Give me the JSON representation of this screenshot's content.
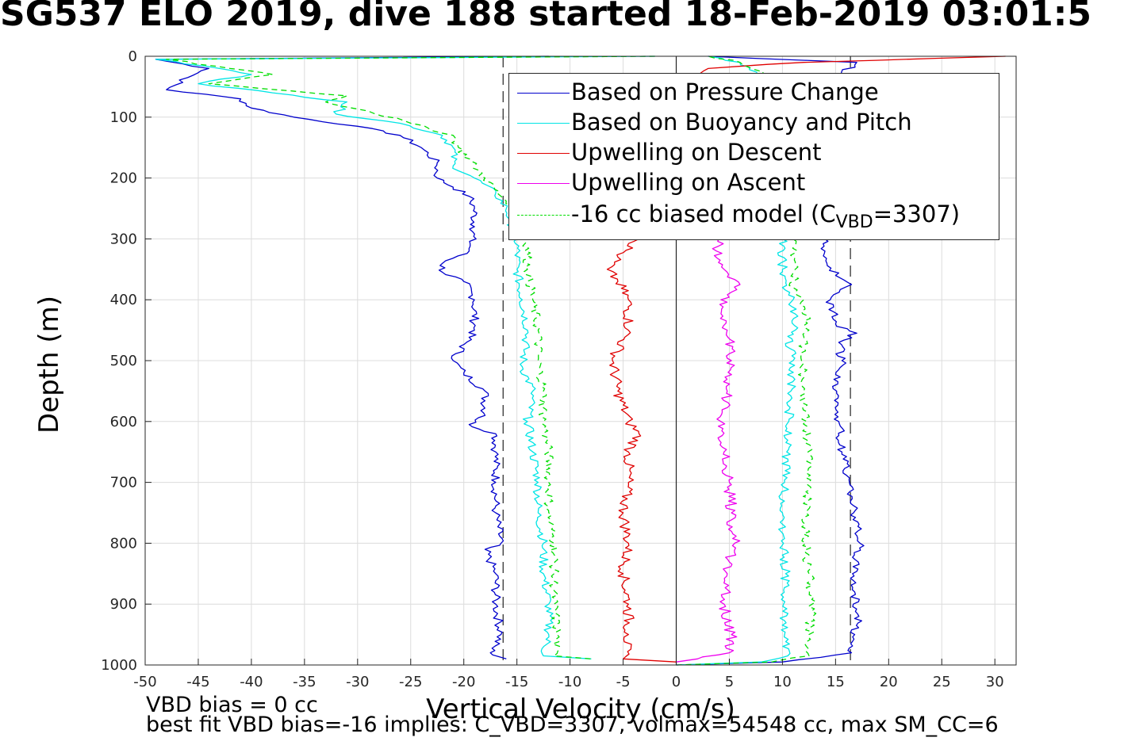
{
  "title": "SG537 ELO 2019, dive 188 started 18-Feb-2019 03:01:5",
  "ylabel": "Depth (m)",
  "xlabel": "Vertical Velocity (cm/s)",
  "footnotes": [
    "VBD bias = 0 cc",
    "best fit VBD bias=-16 implies: C_VBD=3307, volmax=54548 cc, max SM_CC=6"
  ],
  "legend": [
    {
      "label": "Based on Pressure Change",
      "color": "#0000cc",
      "style": "solid"
    },
    {
      "label": "Based on Buoyancy and Pitch",
      "color": "#00e5e5",
      "style": "solid"
    },
    {
      "label": "Upwelling on Descent",
      "color": "#e00000",
      "style": "solid"
    },
    {
      "label": "Upwelling on Ascent",
      "color": "#ee00ee",
      "style": "solid"
    },
    {
      "label_prefix": "-16 cc biased model (C",
      "label_sub": "VBD",
      "label_suffix": "=3307)",
      "color": "#00dd00",
      "style": "dashed"
    }
  ],
  "chart_data": {
    "type": "line",
    "xlim": [
      -50,
      32
    ],
    "ylim": [
      1000,
      0
    ],
    "x_ticks": [
      -50,
      -45,
      -40,
      -35,
      -30,
      -25,
      -20,
      -15,
      -10,
      -5,
      0,
      5,
      10,
      15,
      20,
      25,
      30
    ],
    "y_ticks": [
      0,
      100,
      200,
      300,
      400,
      500,
      600,
      700,
      800,
      900,
      1000
    ],
    "grid": true,
    "legend_position": "top-right",
    "reference_lines": {
      "dashed_x": [
        -16.3,
        16.4
      ],
      "solid_x": [
        0
      ]
    },
    "series": [
      {
        "name": "Based on Pressure Change",
        "color": "#0000cc",
        "descent": {
          "depth": [
            0,
            5,
            20,
            35,
            55,
            70,
            85,
            100,
            115,
            130,
            150,
            175,
            200,
            215,
            230,
            250,
            280,
            320,
            340,
            355,
            370,
            400,
            450,
            500,
            520,
            550,
            590,
            605,
            620,
            650,
            700,
            750,
            800,
            810,
            850,
            900,
            950,
            980,
            990
          ],
          "velocity": [
            -12,
            -49,
            -44,
            -46,
            -48,
            -41,
            -40,
            -36,
            -30,
            -26,
            -24,
            -22.5,
            -22.5,
            -21,
            -19.5,
            -19,
            -19,
            -19.5,
            -22,
            -22,
            -20,
            -19,
            -19,
            -21,
            -20,
            -18,
            -18,
            -19.5,
            -17,
            -17,
            -17,
            -17,
            -16.5,
            -18,
            -17,
            -17,
            -16.5,
            -17.5,
            -16
          ]
        },
        "ascent": {
          "depth": [
            1000,
            995,
            980,
            950,
            920,
            880,
            850,
            800,
            780,
            750,
            700,
            650,
            600,
            550,
            500,
            470,
            455,
            440,
            400,
            375,
            360,
            320,
            300,
            250,
            200,
            150,
            100,
            50,
            10,
            0
          ],
          "velocity": [
            0,
            10,
            16.5,
            16.8,
            17.2,
            16.8,
            16.6,
            17.3,
            17.1,
            16.7,
            16.3,
            15.6,
            15.3,
            15.1,
            15.6,
            15.3,
            17,
            15,
            14.5,
            16.5,
            15,
            14,
            14,
            14,
            14,
            14,
            14,
            14,
            17,
            3
          ]
        }
      },
      {
        "name": "Based on Buoyancy and Pitch",
        "color": "#00e5e5",
        "descent": {
          "depth": [
            0,
            5,
            20,
            30,
            45,
            60,
            75,
            95,
            110,
            130,
            150,
            180,
            200,
            225,
            250,
            300,
            350,
            400,
            450,
            510,
            550,
            600,
            650,
            700,
            750,
            800,
            850,
            900,
            950,
            985,
            990
          ],
          "velocity": [
            -2,
            -49,
            -43,
            -40,
            -45,
            -38,
            -31,
            -32,
            -26,
            -22,
            -21,
            -21,
            -19,
            -17,
            -16,
            -15,
            -15,
            -14.5,
            -14,
            -14.5,
            -13.5,
            -14,
            -13.5,
            -13,
            -13,
            -12.5,
            -12.5,
            -12,
            -12,
            -12.5,
            -8
          ]
        },
        "ascent": {
          "depth": [
            1000,
            995,
            985,
            950,
            900,
            850,
            800,
            750,
            700,
            650,
            600,
            550,
            500,
            460,
            450,
            400,
            380,
            350,
            300,
            250,
            200,
            150,
            100,
            50,
            10,
            0
          ],
          "velocity": [
            0,
            8,
            10.5,
            10.2,
            10.1,
            10.3,
            10.1,
            10,
            10.2,
            10.4,
            10.6,
            10.8,
            11,
            10.5,
            11.2,
            11,
            10,
            10,
            10,
            10,
            10,
            10,
            10,
            10,
            6,
            3
          ]
        }
      },
      {
        "name": "Upwelling on Descent",
        "color": "#e00000",
        "depth": [
          0,
          10,
          20,
          300,
          330,
          350,
          370,
          400,
          450,
          500,
          550,
          600,
          620,
          650,
          700,
          750,
          800,
          850,
          900,
          950,
          990,
          995
        ],
        "velocity": [
          31,
          12,
          3,
          -3.5,
          -5.5,
          -6.5,
          -5.5,
          -4.5,
          -4.5,
          -6,
          -5.5,
          -4.5,
          -3.5,
          -4.5,
          -4.5,
          -5,
          -4.5,
          -5,
          -4.5,
          -4.5,
          -5,
          0
        ]
      },
      {
        "name": "Upwelling on Ascent",
        "color": "#ee00ee",
        "depth": [
          995,
          990,
          980,
          950,
          900,
          850,
          800,
          750,
          700,
          650,
          600,
          550,
          500,
          450,
          400,
          375,
          350,
          320,
          300
        ],
        "velocity": [
          0,
          2,
          5,
          5.2,
          4.5,
          4.8,
          5.5,
          5.2,
          5,
          4.5,
          4.2,
          4.8,
          5.2,
          4.8,
          4.2,
          6,
          4.5,
          3.8,
          4
        ]
      },
      {
        "name": "-16 cc biased model (C_VBD=3307)",
        "color": "#00dd00",
        "dashed": true,
        "descent": {
          "depth": [
            0,
            5,
            20,
            30,
            45,
            65,
            75,
            90,
            110,
            130,
            150,
            180,
            200,
            230,
            250,
            300,
            350,
            400,
            450,
            500,
            550,
            600,
            650,
            700,
            750,
            800,
            850,
            900,
            950,
            985,
            990
          ],
          "velocity": [
            -2,
            -48,
            -42,
            -38,
            -44,
            -31,
            -33,
            -29,
            -25,
            -21,
            -20.5,
            -19,
            -18,
            -16.5,
            -15,
            -14,
            -14,
            -13.5,
            -13,
            -13,
            -12.5,
            -12.5,
            -12,
            -12,
            -12,
            -11.5,
            -11.5,
            -11.5,
            -11.2,
            -11.5,
            -8
          ]
        },
        "ascent": {
          "depth": [
            1000,
            995,
            985,
            950,
            900,
            850,
            800,
            750,
            700,
            650,
            600,
            550,
            500,
            460,
            450,
            400,
            380,
            350,
            300,
            250,
            200,
            150,
            100,
            50,
            10,
            0
          ],
          "velocity": [
            0,
            9,
            12.5,
            12.5,
            12.8,
            12.5,
            12.2,
            12.2,
            12.5,
            12.4,
            12.3,
            12,
            11.8,
            12,
            12.5,
            12,
            11,
            11.2,
            11,
            11,
            11,
            11,
            11,
            11,
            6,
            3
          ]
        }
      }
    ]
  }
}
